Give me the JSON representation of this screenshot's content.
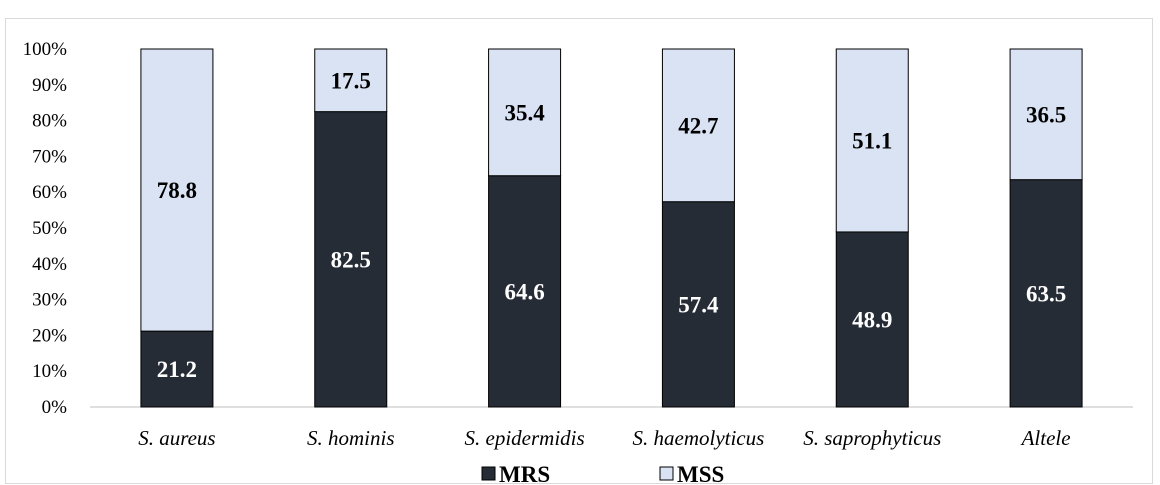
{
  "chart_data": {
    "type": "bar",
    "stacked": true,
    "percent": true,
    "categories": [
      "S. aureus",
      "S. hominis",
      "S. epidermidis",
      "S. haemolyticus",
      "S. saprophyticus",
      "Altele"
    ],
    "series": [
      {
        "name": "MRS",
        "values": [
          21.2,
          82.5,
          64.6,
          57.4,
          48.9,
          63.5
        ],
        "color": "#262c36",
        "label_color": "#ffffff"
      },
      {
        "name": "MSS",
        "values": [
          78.8,
          17.5,
          35.4,
          42.7,
          51.1,
          36.5
        ],
        "color": "#dae3f3",
        "label_color": "#000000"
      }
    ],
    "yticks": [
      "0%",
      "10%",
      "20%",
      "30%",
      "40%",
      "50%",
      "60%",
      "70%",
      "80%",
      "90%",
      "100%"
    ],
    "ylim": [
      0,
      100
    ],
    "grid": false,
    "legend": "bottom"
  }
}
